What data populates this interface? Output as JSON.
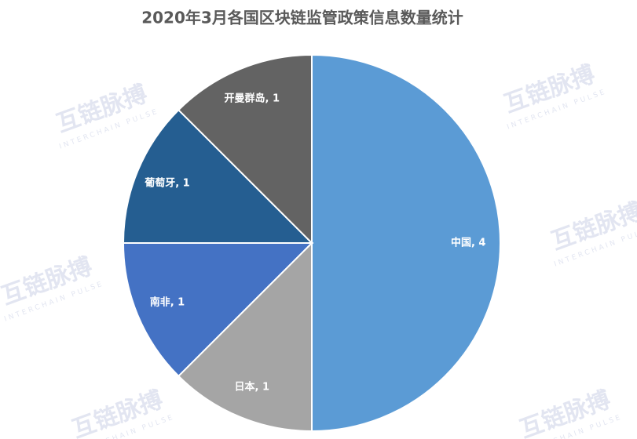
{
  "chart_data": {
    "type": "pie",
    "title": "2020年3月各国区块链监管政策信息数量统计",
    "categories": [
      "中国",
      "日本",
      "南非",
      "葡萄牙",
      "开曼群岛"
    ],
    "values": [
      4,
      1,
      1,
      1,
      1
    ],
    "value_labels": [
      "中国, 4",
      "日本, 1",
      "南非, 1",
      "葡萄牙, 1",
      "开曼群岛, 1"
    ],
    "colors": [
      "#5b9bd5",
      "#a5a5a5",
      "#4472c4",
      "#255e91",
      "#636363"
    ]
  },
  "watermark": {
    "name": "互链脉搏",
    "subtitle": "INTERCHAIN PULSE"
  }
}
